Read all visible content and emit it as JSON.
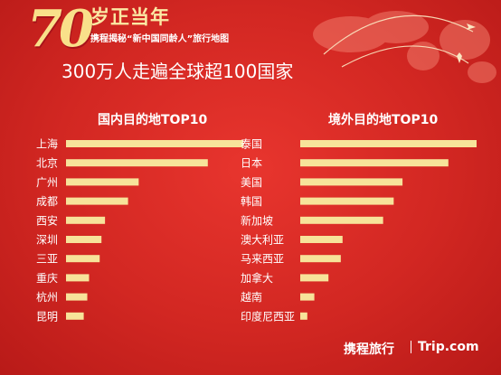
{
  "header": {
    "number": "70",
    "slogan": "岁正当年",
    "subtitle": "携程揭秘“新中国同龄人”旅行地图",
    "headline": "300万人走遍全球超100国家"
  },
  "footer": {
    "brand_cn": "携程旅行",
    "brand_en": "Trip.com"
  },
  "colors": {
    "background": "#d22722",
    "bar": "#f7e39a",
    "text": "#ffffff",
    "accent": "#f9e08a"
  },
  "chart_data": [
    {
      "type": "bar",
      "orientation": "horizontal",
      "title": "国内目的地TOP10",
      "categories": [
        "上海",
        "北京",
        "广州",
        "成都",
        "西安",
        "深圳",
        "三亚",
        "重庆",
        "杭州",
        "昆明"
      ],
      "values": [
        100,
        80,
        41,
        35,
        22,
        20,
        19,
        13,
        12,
        10
      ],
      "xlim": [
        0,
        100
      ],
      "grid": false,
      "legend": "none"
    },
    {
      "type": "bar",
      "orientation": "horizontal",
      "title": "境外目的地TOP10",
      "categories": [
        "泰国",
        "日本",
        "美国",
        "韩国",
        "新加坡",
        "澳大利亚",
        "马来西亚",
        "加拿大",
        "越南",
        "印度尼西亚"
      ],
      "values": [
        100,
        84,
        58,
        53,
        47,
        24,
        23,
        16,
        8,
        4
      ],
      "xlim": [
        0,
        100
      ],
      "grid": false,
      "legend": "none"
    }
  ]
}
